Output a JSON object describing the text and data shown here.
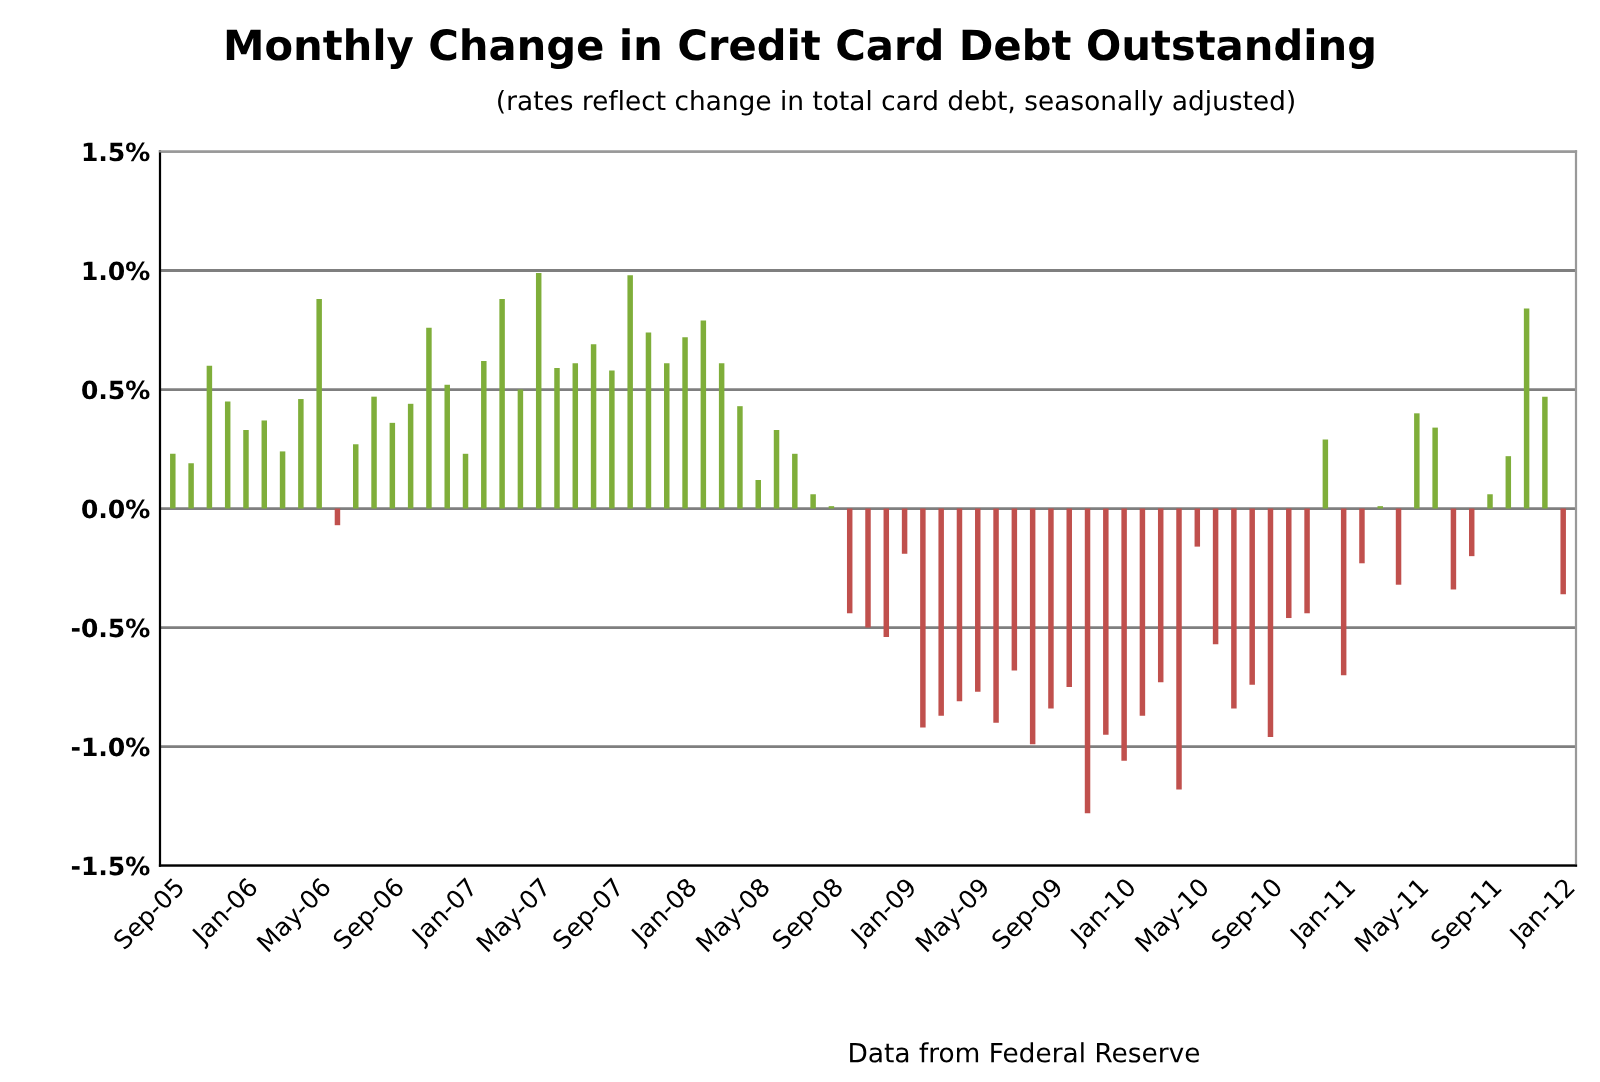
{
  "chart_data": {
    "type": "bar",
    "title": "Monthly Change in Credit Card Debt Outstanding",
    "subtitle": "(rates reflect change in total card debt, seasonally adjusted)",
    "categories": [
      "Sep-05",
      null,
      null,
      null,
      "Jan-06",
      null,
      null,
      null,
      "May-06",
      null,
      null,
      null,
      "Sep-06",
      null,
      null,
      null,
      "Jan-07",
      null,
      null,
      null,
      "May-07",
      null,
      null,
      null,
      "Sep-07",
      null,
      null,
      null,
      "Jan-08",
      null,
      null,
      null,
      "May-08",
      null,
      null,
      null,
      "Sep-08",
      null,
      null,
      null,
      "Jan-09",
      null,
      null,
      null,
      "May-09",
      null,
      null,
      null,
      "Sep-09",
      null,
      null,
      null,
      "Jan-10",
      null,
      null,
      null,
      "May-10",
      null,
      null,
      null,
      "Sep-10",
      null,
      null,
      null,
      "Jan-11",
      null,
      null,
      null,
      "May-11",
      null,
      null,
      null,
      "Sep-11",
      null,
      null,
      null,
      "Jan-12"
    ],
    "values": [
      0.23,
      0.19,
      0.6,
      0.45,
      0.33,
      0.37,
      0.24,
      0.46,
      0.88,
      -0.07,
      0.27,
      0.47,
      0.36,
      0.44,
      0.76,
      0.52,
      0.23,
      0.62,
      0.88,
      0.5,
      0.99,
      0.59,
      0.61,
      0.69,
      0.58,
      0.98,
      0.74,
      0.61,
      0.72,
      0.79,
      0.61,
      0.43,
      0.12,
      0.33,
      0.23,
      0.06,
      0.01,
      -0.44,
      -0.5,
      -0.54,
      -0.19,
      -0.92,
      -0.87,
      -0.81,
      -0.77,
      -0.9,
      -0.68,
      -0.99,
      -0.84,
      -0.75,
      -1.28,
      -0.95,
      -1.06,
      -0.87,
      -0.73,
      -1.18,
      -0.16,
      -0.57,
      -0.84,
      -0.74,
      -0.96,
      -0.46,
      -0.44,
      0.29,
      -0.7,
      -0.23,
      0.01,
      -0.32,
      0.4,
      0.34,
      -0.34,
      -0.2,
      0.06,
      0.22,
      0.84,
      0.47,
      -0.36
    ],
    "colors": [
      "#7fae3a",
      "#7fae3a",
      "#7fae3a",
      "#7fae3a",
      "#7fae3a",
      "#7fae3a",
      "#7fae3a",
      "#7fae3a",
      "#7fae3a",
      "#c0504d",
      "#7fae3a",
      "#7fae3a",
      "#7fae3a",
      "#7fae3a",
      "#7fae3a",
      "#7fae3a",
      "#7fae3a",
      "#7fae3a",
      "#7fae3a",
      "#7fae3a",
      "#7fae3a",
      "#7fae3a",
      "#7fae3a",
      "#7fae3a",
      "#7fae3a",
      "#7fae3a",
      "#7fae3a",
      "#7fae3a",
      "#7fae3a",
      "#7fae3a",
      "#7fae3a",
      "#7fae3a",
      "#7fae3a",
      "#7fae3a",
      "#7fae3a",
      "#7fae3a",
      "#7fae3a",
      "#c0504d",
      "#c0504d",
      "#c0504d",
      "#c0504d",
      "#c0504d",
      "#c0504d",
      "#c0504d",
      "#c0504d",
      "#c0504d",
      "#c0504d",
      "#c0504d",
      "#c0504d",
      "#c0504d",
      "#c0504d",
      "#c0504d",
      "#c0504d",
      "#c0504d",
      "#c0504d",
      "#c0504d",
      "#c0504d",
      "#c0504d",
      "#c0504d",
      "#c0504d",
      "#c0504d",
      "#c0504d",
      "#c0504d",
      "#7fae3a",
      "#c0504d",
      "#c0504d",
      "#7fae3a",
      "#c0504d",
      "#7fae3a",
      "#7fae3a",
      "#c0504d",
      "#c0504d",
      "#7fae3a",
      "#7fae3a",
      "#7fae3a",
      "#7fae3a",
      "#c0504d"
    ],
    "ylim": [
      -1.5,
      1.5
    ],
    "yticks": [
      {
        "value": -1.5,
        "label": "-1.5%"
      },
      {
        "value": -1.0,
        "label": "-1.0%"
      },
      {
        "value": -0.5,
        "label": "-0.5%"
      },
      {
        "value": 0.0,
        "label": "0.0%"
      },
      {
        "value": 0.5,
        "label": "0.5%"
      },
      {
        "value": 1.0,
        "label": "1.0%"
      },
      {
        "value": 1.5,
        "label": "1.5%"
      }
    ],
    "grid": "y",
    "annotations": [
      "Data from Federal Reserve"
    ]
  }
}
